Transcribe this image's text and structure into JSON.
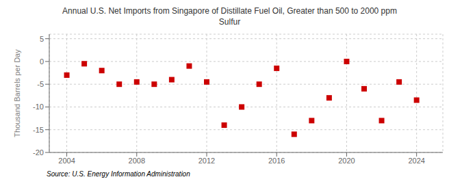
{
  "chart_data": {
    "type": "scatter",
    "title": "Annual U.S. Net Imports from Singapore of Distillate Fuel Oil, Greater than 500 to 2000 ppm\nSulfur",
    "ylabel": "Thousand Barrels per Day",
    "source": "Source: U.S. Energy Information Administration",
    "x": [
      2004,
      2005,
      2006,
      2007,
      2008,
      2009,
      2010,
      2011,
      2012,
      2013,
      2014,
      2015,
      2016,
      2017,
      2018,
      2019,
      2020,
      2021,
      2022,
      2023,
      2024
    ],
    "values": [
      -3.0,
      -0.5,
      -2.0,
      -5.0,
      -4.5,
      -5.0,
      -4.0,
      -1.0,
      -4.5,
      -14.0,
      -10.0,
      -5.0,
      -1.5,
      -16.0,
      -13.0,
      -8.0,
      0.0,
      -6.0,
      -13.0,
      -4.5,
      -8.5
    ],
    "xlim": [
      2003.0,
      2025.5
    ],
    "ylim": [
      -20,
      6
    ],
    "xticks": [
      2004,
      2008,
      2012,
      2016,
      2020,
      2024
    ],
    "yticks": [
      -20,
      -15,
      -10,
      -5,
      0,
      5
    ],
    "color": "#cc0000",
    "marker": "square",
    "grid": true
  }
}
